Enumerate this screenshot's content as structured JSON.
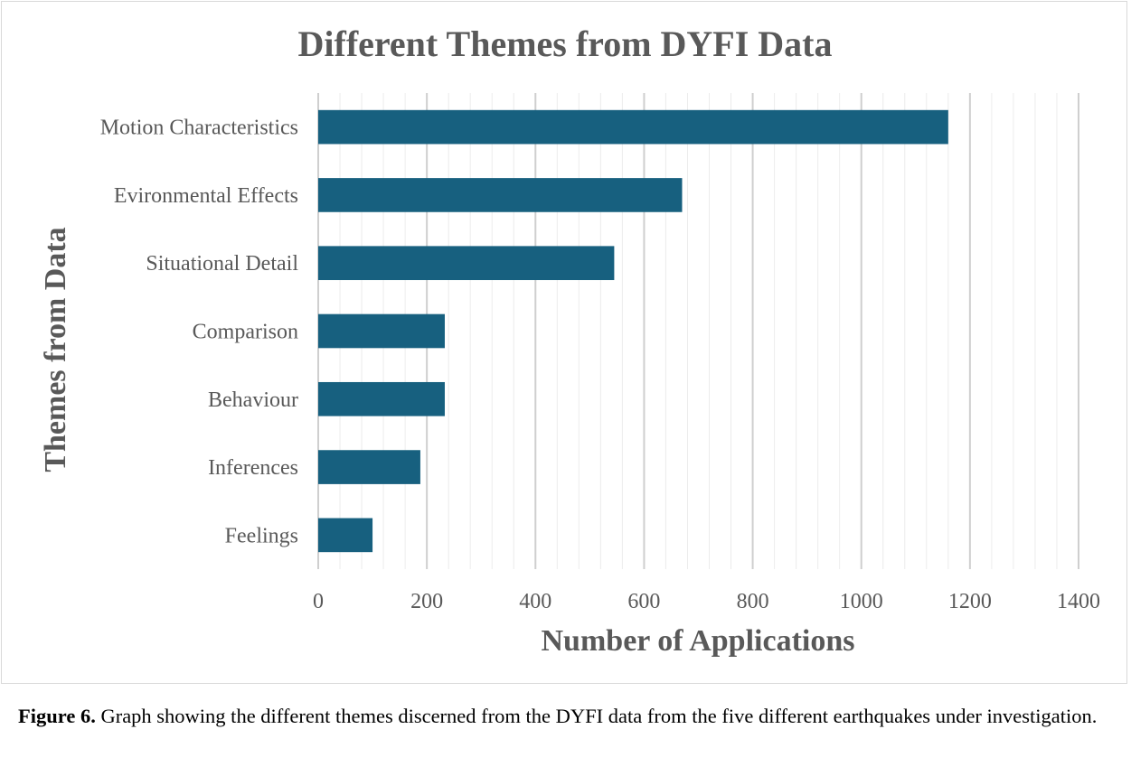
{
  "chart_data": {
    "type": "bar",
    "orientation": "horizontal",
    "title": "Different Themes from DYFI Data",
    "xlabel": "Number of Applications",
    "ylabel": "Themes from Data",
    "categories": [
      "Motion Characteristics",
      "Evironmental Effects",
      "Situational Detail",
      "Comparison",
      "Behaviour",
      "Inferences",
      "Feelings"
    ],
    "values": [
      1160,
      670,
      545,
      233,
      233,
      188,
      100
    ],
    "xlim": [
      0,
      1400
    ],
    "xticks": [
      0,
      200,
      400,
      600,
      800,
      1000,
      1200,
      1400
    ],
    "bar_color": "#17607f",
    "grid": true
  },
  "caption": {
    "label": "Figure 6.",
    "text": " Graph showing the different themes discerned from the DYFI data from the five different earthquakes under investigation."
  }
}
